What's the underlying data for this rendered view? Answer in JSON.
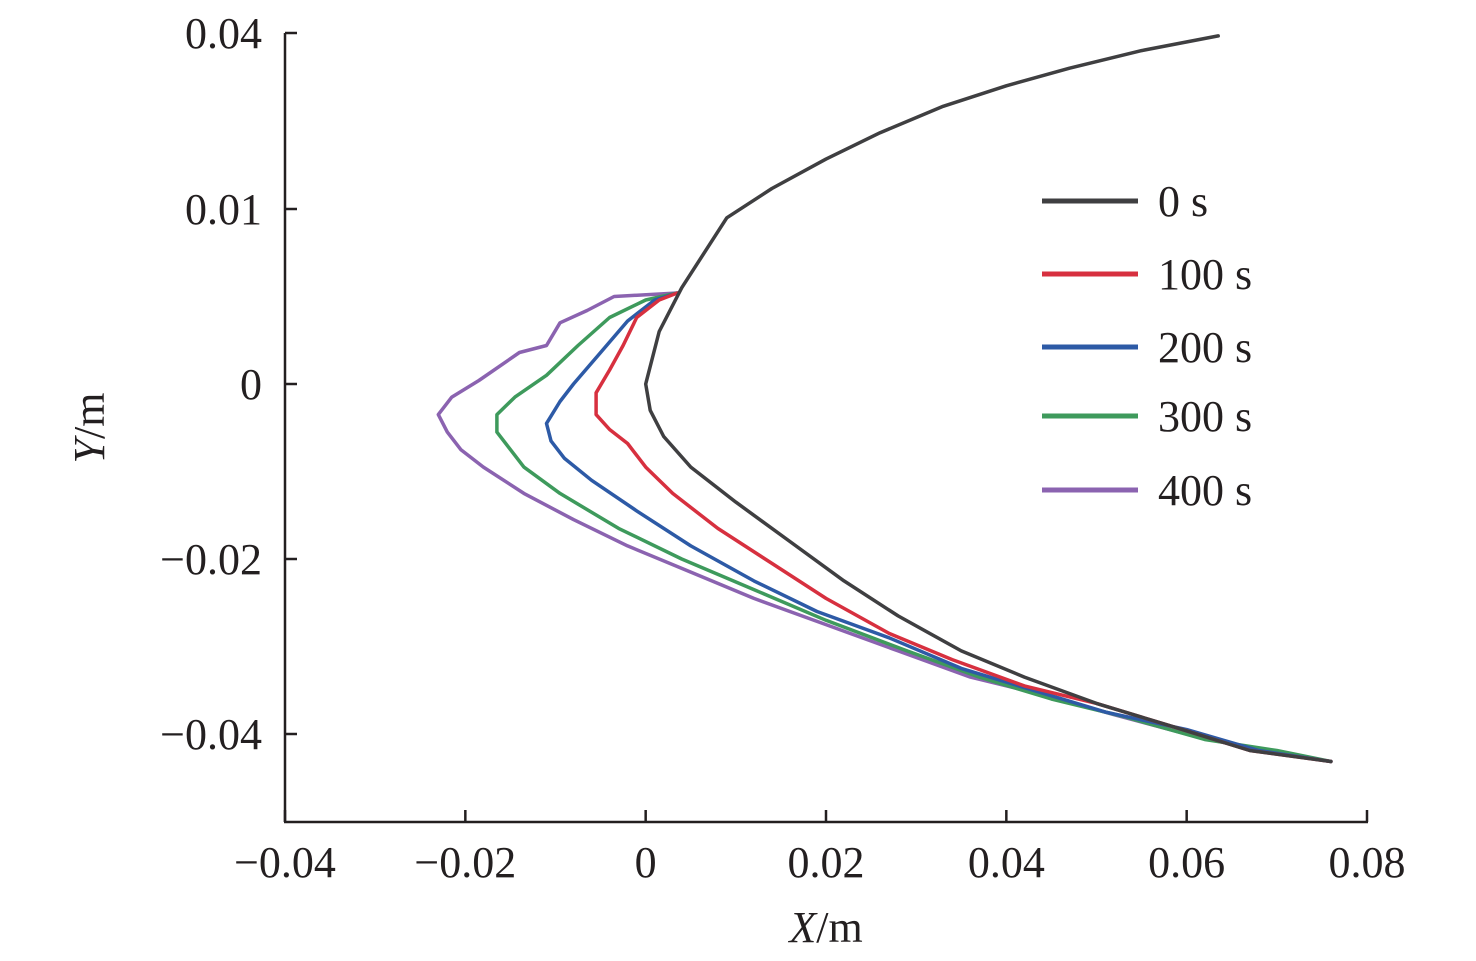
{
  "chart_data": {
    "type": "line",
    "xlabel": "X/m",
    "ylabel": "Y/m",
    "xlim": [
      -0.04,
      0.08
    ],
    "ylim": [
      -0.048,
      0.042
    ],
    "x_ticks": [
      {
        "value": -0.04,
        "label": "−0.04"
      },
      {
        "value": -0.02,
        "label": "−0.02"
      },
      {
        "value": 0,
        "label": "0"
      },
      {
        "value": 0.02,
        "label": "0.02"
      },
      {
        "value": 0.04,
        "label": "0.04"
      },
      {
        "value": 0.06,
        "label": "0.06"
      },
      {
        "value": 0.08,
        "label": "0.08"
      }
    ],
    "y_ticks": [
      {
        "value": 0.04,
        "label": "0.04"
      },
      {
        "value": 0.01,
        "label": "0.01"
      },
      {
        "value": 0,
        "label": "0"
      },
      {
        "value": -0.02,
        "label": "−0.02"
      },
      {
        "value": -0.04,
        "label": "−0.04"
      }
    ],
    "grid": false,
    "legend_position": "right",
    "series": [
      {
        "name": "0 s",
        "color": "#3f3f41",
        "points": [
          [
            0.0635,
            0.0395
          ],
          [
            0.055,
            0.037
          ],
          [
            0.047,
            0.034
          ],
          [
            0.04,
            0.031
          ],
          [
            0.033,
            0.0275
          ],
          [
            0.026,
            0.023
          ],
          [
            0.02,
            0.0185
          ],
          [
            0.014,
            0.0135
          ],
          [
            0.009,
            0.0095
          ],
          [
            0.004,
            0.0055
          ],
          [
            0.0015,
            0.003
          ],
          [
            0.0,
            0.0
          ],
          [
            0.0005,
            -0.003
          ],
          [
            0.002,
            -0.006
          ],
          [
            0.005,
            -0.0095
          ],
          [
            0.01,
            -0.0135
          ],
          [
            0.016,
            -0.018
          ],
          [
            0.022,
            -0.0225
          ],
          [
            0.028,
            -0.0265
          ],
          [
            0.035,
            -0.0305
          ],
          [
            0.042,
            -0.0335
          ],
          [
            0.05,
            -0.0365
          ],
          [
            0.058,
            -0.039
          ],
          [
            0.067,
            -0.0415
          ],
          [
            0.076,
            -0.0425
          ]
        ]
      },
      {
        "name": "100 s",
        "color": "#d7303f",
        "points": [
          [
            0.0035,
            0.0052
          ],
          [
            0.0015,
            0.0048
          ],
          [
            -0.001,
            0.0038
          ],
          [
            -0.0025,
            0.0022
          ],
          [
            -0.004,
            0.0008
          ],
          [
            -0.0055,
            -0.001
          ],
          [
            -0.0055,
            -0.0035
          ],
          [
            -0.004,
            -0.0052
          ],
          [
            -0.002,
            -0.0068
          ],
          [
            0.0,
            -0.0095
          ],
          [
            0.003,
            -0.0125
          ],
          [
            0.008,
            -0.0165
          ],
          [
            0.014,
            -0.0205
          ],
          [
            0.02,
            -0.0245
          ],
          [
            0.027,
            -0.0285
          ],
          [
            0.034,
            -0.0315
          ],
          [
            0.042,
            -0.0345
          ],
          [
            0.05,
            -0.0365
          ],
          [
            0.058,
            -0.039
          ],
          [
            0.067,
            -0.0415
          ],
          [
            0.076,
            -0.0425
          ]
        ]
      },
      {
        "name": "200 s",
        "color": "#2d5aa6",
        "points": [
          [
            0.0035,
            0.0052
          ],
          [
            0.001,
            0.0048
          ],
          [
            -0.002,
            0.0036
          ],
          [
            -0.005,
            0.0018
          ],
          [
            -0.008,
            0.0
          ],
          [
            -0.0095,
            -0.002
          ],
          [
            -0.011,
            -0.0045
          ],
          [
            -0.0105,
            -0.0065
          ],
          [
            -0.009,
            -0.0085
          ],
          [
            -0.006,
            -0.011
          ],
          [
            -0.001,
            -0.0145
          ],
          [
            0.005,
            -0.0185
          ],
          [
            0.012,
            -0.0225
          ],
          [
            0.019,
            -0.026
          ],
          [
            0.027,
            -0.029
          ],
          [
            0.035,
            -0.0325
          ],
          [
            0.043,
            -0.035
          ],
          [
            0.051,
            -0.0375
          ],
          [
            0.06,
            -0.0395
          ],
          [
            0.068,
            -0.0415
          ],
          [
            0.076,
            -0.0425
          ]
        ]
      },
      {
        "name": "300 s",
        "color": "#3e9a5c",
        "points": [
          [
            0.0035,
            0.0052
          ],
          [
            0.0,
            0.0048
          ],
          [
            -0.004,
            0.0038
          ],
          [
            -0.0075,
            0.0022
          ],
          [
            -0.011,
            0.0005
          ],
          [
            -0.0145,
            -0.0015
          ],
          [
            -0.0165,
            -0.0035
          ],
          [
            -0.0165,
            -0.0055
          ],
          [
            -0.015,
            -0.0075
          ],
          [
            -0.0135,
            -0.0095
          ],
          [
            -0.0095,
            -0.0125
          ],
          [
            -0.003,
            -0.0165
          ],
          [
            0.004,
            -0.02
          ],
          [
            0.012,
            -0.0235
          ],
          [
            0.02,
            -0.027
          ],
          [
            0.029,
            -0.0305
          ],
          [
            0.037,
            -0.0335
          ],
          [
            0.045,
            -0.036
          ],
          [
            0.053,
            -0.038
          ],
          [
            0.062,
            -0.0405
          ],
          [
            0.07,
            -0.0415
          ],
          [
            0.076,
            -0.0425
          ]
        ]
      },
      {
        "name": "400 s",
        "color": "#8b63b0",
        "points": [
          [
            0.0035,
            0.0052
          ],
          [
            -0.0035,
            0.005
          ],
          [
            -0.0065,
            0.0042
          ],
          [
            -0.0095,
            0.0035
          ],
          [
            -0.011,
            0.0022
          ],
          [
            -0.014,
            0.0018
          ],
          [
            -0.0185,
            0.0002
          ],
          [
            -0.0215,
            -0.0015
          ],
          [
            -0.023,
            -0.0035
          ],
          [
            -0.022,
            -0.0055
          ],
          [
            -0.0205,
            -0.0075
          ],
          [
            -0.018,
            -0.0095
          ],
          [
            -0.0135,
            -0.0125
          ],
          [
            -0.008,
            -0.0155
          ],
          [
            -0.002,
            -0.0185
          ],
          [
            0.005,
            -0.0215
          ],
          [
            0.012,
            -0.0245
          ],
          [
            0.02,
            -0.0275
          ],
          [
            0.028,
            -0.0305
          ],
          [
            0.036,
            -0.0335
          ],
          [
            0.044,
            -0.0355
          ],
          [
            0.052,
            -0.0378
          ],
          [
            0.06,
            -0.04
          ],
          [
            0.068,
            -0.0415
          ],
          [
            0.076,
            -0.0425
          ]
        ]
      }
    ]
  }
}
